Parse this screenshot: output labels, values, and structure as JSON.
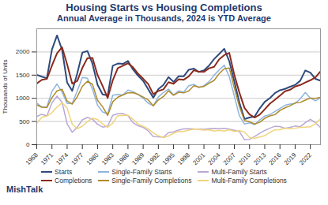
{
  "chart_data": {
    "type": "line",
    "title": "Housing Starts vs Housing Completions",
    "subtitle": "Annual Average in Thousands, 2024 is YTD Average",
    "y_label": "Thousands of Units",
    "annotations": [
      "MishTalk"
    ],
    "x": [
      1968,
      1969,
      1970,
      1971,
      1972,
      1973,
      1974,
      1975,
      1976,
      1977,
      1978,
      1979,
      1980,
      1981,
      1982,
      1983,
      1984,
      1985,
      1986,
      1987,
      1988,
      1989,
      1990,
      1991,
      1992,
      1993,
      1994,
      1995,
      1996,
      1997,
      1998,
      1999,
      2000,
      2001,
      2002,
      2003,
      2004,
      2005,
      2006,
      2007,
      2008,
      2009,
      2010,
      2011,
      2012,
      2013,
      2014,
      2015,
      2016,
      2017,
      2018,
      2019,
      2020,
      2021,
      2022,
      2023,
      2024
    ],
    "xlim": [
      1968,
      2024
    ],
    "xticks": [
      1968,
      1971,
      1974,
      1977,
      1980,
      1983,
      1986,
      1989,
      1992,
      1995,
      1998,
      2001,
      2004,
      2007,
      2010,
      2013,
      2016,
      2019,
      2022
    ],
    "ylim": [
      0,
      2500
    ],
    "yticks": [
      0,
      500,
      1000,
      1500,
      2000
    ],
    "grid": true,
    "legend": "bottom",
    "series": [
      {
        "name": "Starts",
        "color": "#2e4a7d",
        "values": [
          1508,
          1467,
          1434,
          2052,
          2357,
          2045,
          1338,
          1160,
          1538,
          1987,
          2020,
          1745,
          1292,
          1084,
          1062,
          1703,
          1750,
          1742,
          1805,
          1621,
          1488,
          1376,
          1193,
          1014,
          1200,
          1288,
          1457,
          1354,
          1477,
          1474,
          1617,
          1641,
          1569,
          1603,
          1705,
          1848,
          1956,
          2068,
          1801,
          1355,
          906,
          554,
          587,
          609,
          781,
          925,
          1003,
          1112,
          1174,
          1203,
          1250,
          1290,
          1380,
          1601,
          1553,
          1420,
          1380
        ]
      },
      {
        "name": "Single-Family Starts",
        "color": "#8fb4de",
        "values": [
          899,
          811,
          813,
          1151,
          1309,
          1132,
          888,
          892,
          1162,
          1451,
          1433,
          1194,
          852,
          705,
          663,
          1068,
          1084,
          1072,
          1179,
          1146,
          1081,
          1003,
          895,
          840,
          1030,
          1126,
          1198,
          1076,
          1161,
          1134,
          1271,
          1302,
          1231,
          1273,
          1359,
          1499,
          1611,
          1716,
          1465,
          1046,
          622,
          445,
          471,
          431,
          535,
          618,
          648,
          715,
          782,
          849,
          876,
          888,
          991,
          1127,
          1005,
          947,
          1010
        ]
      },
      {
        "name": "Multi-Family Starts",
        "color": "#b9a9d4",
        "values": [
          609,
          656,
          621,
          901,
          1048,
          913,
          450,
          268,
          376,
          536,
          587,
          551,
          440,
          379,
          399,
          635,
          666,
          670,
          626,
          475,
          407,
          373,
          298,
          174,
          170,
          162,
          259,
          278,
          316,
          340,
          346,
          339,
          338,
          330,
          346,
          349,
          345,
          352,
          336,
          309,
          284,
          109,
          116,
          178,
          246,
          307,
          355,
          397,
          392,
          354,
          374,
          402,
          389,
          474,
          548,
          473,
          370
        ]
      },
      {
        "name": "Completions",
        "color": "#8b2a1c",
        "values": [
          1320,
          1399,
          1418,
          1706,
          1972,
          2101,
          1729,
          1317,
          1377,
          1657,
          1868,
          1871,
          1502,
          1266,
          1006,
          1390,
          1652,
          1703,
          1756,
          1669,
          1530,
          1423,
          1308,
          1091,
          1158,
          1193,
          1347,
          1313,
          1413,
          1400,
          1474,
          1605,
          1574,
          1571,
          1648,
          1679,
          1842,
          1931,
          1979,
          1503,
          1120,
          794,
          652,
          585,
          649,
          764,
          884,
          968,
          1060,
          1153,
          1185,
          1255,
          1287,
          1341,
          1390,
          1452,
          1580
        ]
      },
      {
        "name": "Single-Family Completions",
        "color": "#b08a2a",
        "values": [
          859,
          808,
          802,
          1014,
          1160,
          1197,
          940,
          875,
          1034,
          1258,
          1369,
          1301,
          957,
          819,
          632,
          924,
          1025,
          1072,
          1120,
          1123,
          1085,
          1026,
          966,
          838,
          964,
          1039,
          1160,
          1066,
          1129,
          1116,
          1160,
          1270,
          1242,
          1256,
          1325,
          1386,
          1532,
          1636,
          1655,
          1218,
          819,
          520,
          496,
          447,
          483,
          569,
          620,
          648,
          738,
          795,
          840,
          900,
          912,
          961,
          1005,
          1001,
          1020
        ]
      },
      {
        "name": "Multi-Family Completions",
        "color": "#f0d47a",
        "values": [
          461,
          591,
          616,
          692,
          812,
          904,
          789,
          442,
          343,
          399,
          499,
          570,
          545,
          447,
          374,
          466,
          627,
          631,
          636,
          546,
          445,
          397,
          342,
          253,
          194,
          154,
          187,
          247,
          284,
          284,
          314,
          335,
          332,
          315,
          323,
          293,
          310,
          295,
          324,
          285,
          301,
          274,
          156,
          138,
          166,
          195,
          264,
          320,
          322,
          358,
          345,
          355,
          375,
          380,
          385,
          451,
          560
        ]
      }
    ]
  }
}
